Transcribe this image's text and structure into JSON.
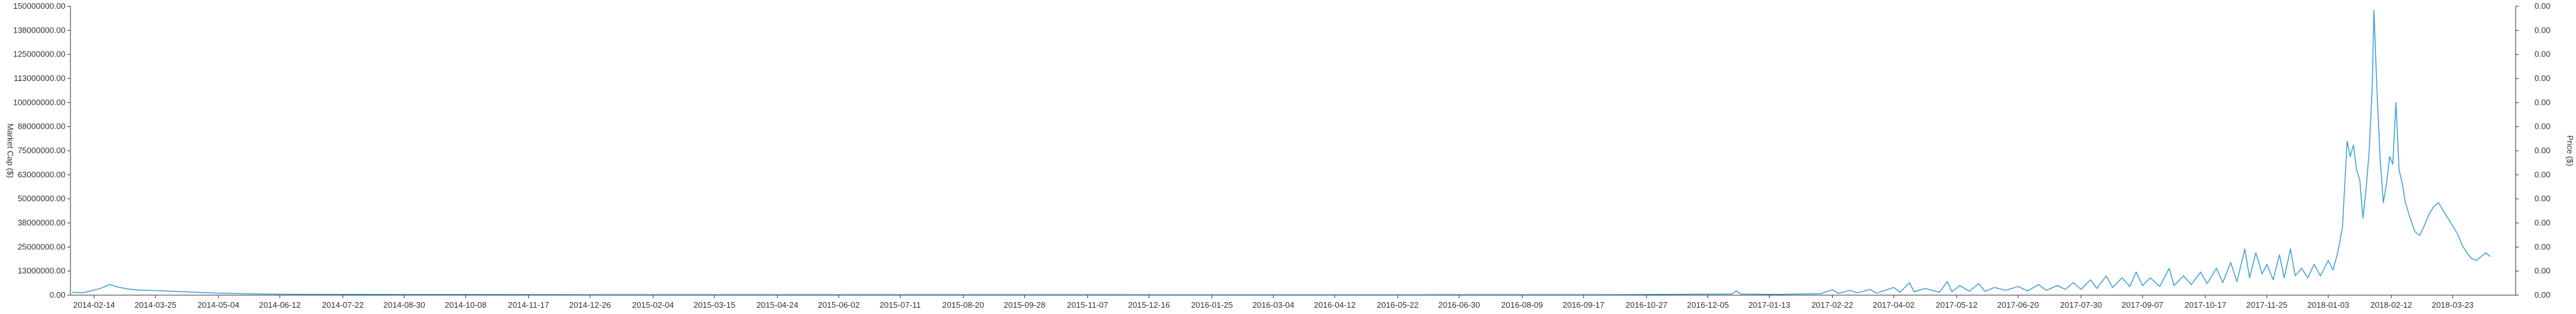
{
  "chart_data": {
    "type": "line",
    "title": "",
    "xlabel": "",
    "ylabel_left": "Market Cap ($)",
    "ylabel_right": "Price ($)",
    "grid": false,
    "legend": "none",
    "line_color": "#3b9fd6",
    "x_tick_labels": [
      "2014-02-14",
      "2014-03-25",
      "2014-05-04",
      "2014-06-12",
      "2014-07-22",
      "2014-08-30",
      "2014-10-08",
      "2014-11-17",
      "2014-12-26",
      "2015-02-04",
      "2015-03-15",
      "2015-04-24",
      "2015-06-02",
      "2015-07-11",
      "2015-08-20",
      "2015-09-28",
      "2015-11-07",
      "2015-12-16",
      "2016-01-25",
      "2016-03-04",
      "2016-04-12",
      "2016-05-22",
      "2016-06-30",
      "2016-08-09",
      "2016-09-17",
      "2016-10-27",
      "2016-12-05",
      "2017-01-13",
      "2017-02-22",
      "2017-04-02",
      "2017-05-12",
      "2017-06-20",
      "2017-07-30",
      "2017-09-07",
      "2017-10-17",
      "2017-11-25",
      "2018-01-03",
      "2018-02-12",
      "2018-03-23"
    ],
    "xlim": [
      "2014-01-30",
      "2018-05-02"
    ],
    "y_left_ticks": [
      "0.00",
      "13000000.00",
      "25000000.00",
      "38000000.00",
      "50000000.00",
      "63000000.00",
      "75000000.00",
      "88000000.00",
      "100000000.00",
      "113000000.00",
      "125000000.00",
      "138000000.00",
      "150000000.00"
    ],
    "y_right_ticks": [
      "0.00",
      "0.00",
      "0.00",
      "0.00",
      "0.00",
      "0.00",
      "0.00",
      "0.00",
      "0.00",
      "0.00",
      "0.00",
      "0.00",
      "0.00"
    ],
    "ylim": [
      0,
      150000000
    ],
    "series": [
      {
        "points": [
          [
            "2014-01-31",
            1500000
          ],
          [
            "2014-02-06",
            1200000
          ],
          [
            "2014-02-10",
            1800000
          ],
          [
            "2014-02-18",
            3500000
          ],
          [
            "2014-02-24",
            5500000
          ],
          [
            "2014-03-01",
            4200000
          ],
          [
            "2014-03-08",
            3200000
          ],
          [
            "2014-03-15",
            2600000
          ],
          [
            "2014-03-25",
            2400000
          ],
          [
            "2014-04-05",
            2000000
          ],
          [
            "2014-04-20",
            1500000
          ],
          [
            "2014-05-04",
            1000000
          ],
          [
            "2014-05-25",
            700000
          ],
          [
            "2014-06-12",
            500000
          ],
          [
            "2014-08-01",
            400000
          ],
          [
            "2014-10-01",
            350000
          ],
          [
            "2015-01-01",
            300000
          ],
          [
            "2015-06-01",
            280000
          ],
          [
            "2016-01-01",
            250000
          ],
          [
            "2016-06-01",
            250000
          ],
          [
            "2016-10-01",
            300000
          ],
          [
            "2016-12-20",
            600000
          ],
          [
            "2016-12-23",
            2200000
          ],
          [
            "2016-12-26",
            600000
          ],
          [
            "2017-01-20",
            400000
          ],
          [
            "2017-02-15",
            800000
          ],
          [
            "2017-02-22",
            2800000
          ],
          [
            "2017-02-26",
            900000
          ],
          [
            "2017-03-05",
            2500000
          ],
          [
            "2017-03-10",
            1200000
          ],
          [
            "2017-03-18",
            3000000
          ],
          [
            "2017-03-22",
            1000000
          ],
          [
            "2017-04-02",
            4000000
          ],
          [
            "2017-04-06",
            1500000
          ],
          [
            "2017-04-12",
            6500000
          ],
          [
            "2017-04-15",
            1800000
          ],
          [
            "2017-04-22",
            3500000
          ],
          [
            "2017-05-01",
            1500000
          ],
          [
            "2017-05-06",
            7000000
          ],
          [
            "2017-05-09",
            1800000
          ],
          [
            "2017-05-14",
            5000000
          ],
          [
            "2017-05-20",
            2000000
          ],
          [
            "2017-05-26",
            6000000
          ],
          [
            "2017-05-30",
            2000000
          ],
          [
            "2017-06-05",
            4000000
          ],
          [
            "2017-06-12",
            2500000
          ],
          [
            "2017-06-20",
            4500000
          ],
          [
            "2017-06-26",
            2200000
          ],
          [
            "2017-07-03",
            5500000
          ],
          [
            "2017-07-08",
            2500000
          ],
          [
            "2017-07-15",
            5000000
          ],
          [
            "2017-07-20",
            3000000
          ],
          [
            "2017-07-25",
            6500000
          ],
          [
            "2017-07-30",
            3000000
          ],
          [
            "2017-08-05",
            8000000
          ],
          [
            "2017-08-09",
            3500000
          ],
          [
            "2017-08-15",
            10000000
          ],
          [
            "2017-08-19",
            4000000
          ],
          [
            "2017-08-25",
            9000000
          ],
          [
            "2017-08-30",
            4500000
          ],
          [
            "2017-09-03",
            12000000
          ],
          [
            "2017-09-07",
            5000000
          ],
          [
            "2017-09-12",
            9000000
          ],
          [
            "2017-09-18",
            4500000
          ],
          [
            "2017-09-24",
            14000000
          ],
          [
            "2017-09-27",
            5000000
          ],
          [
            "2017-10-03",
            10000000
          ],
          [
            "2017-10-08",
            5500000
          ],
          [
            "2017-10-14",
            12000000
          ],
          [
            "2017-10-18",
            6000000
          ],
          [
            "2017-10-24",
            14000000
          ],
          [
            "2017-10-28",
            6500000
          ],
          [
            "2017-11-02",
            17000000
          ],
          [
            "2017-11-06",
            7000000
          ],
          [
            "2017-11-11",
            24000000
          ],
          [
            "2017-11-14",
            9000000
          ],
          [
            "2017-11-18",
            22000000
          ],
          [
            "2017-11-22",
            11000000
          ],
          [
            "2017-11-25",
            16000000
          ],
          [
            "2017-11-29",
            8000000
          ],
          [
            "2017-12-03",
            21000000
          ],
          [
            "2017-12-06",
            9000000
          ],
          [
            "2017-12-10",
            24000000
          ],
          [
            "2017-12-13",
            10000000
          ],
          [
            "2017-12-17",
            14000000
          ],
          [
            "2017-12-21",
            9000000
          ],
          [
            "2017-12-25",
            16000000
          ],
          [
            "2017-12-29",
            10000000
          ],
          [
            "2018-01-03",
            18000000
          ],
          [
            "2018-01-06",
            13000000
          ],
          [
            "2018-01-09",
            22000000
          ],
          [
            "2018-01-12",
            35000000
          ],
          [
            "2018-01-15",
            80000000
          ],
          [
            "2018-01-17",
            72000000
          ],
          [
            "2018-01-19",
            78000000
          ],
          [
            "2018-01-21",
            65000000
          ],
          [
            "2018-01-23",
            60000000
          ],
          [
            "2018-01-25",
            40000000
          ],
          [
            "2018-01-27",
            55000000
          ],
          [
            "2018-01-29",
            75000000
          ],
          [
            "2018-01-31",
            110000000
          ],
          [
            "2018-02-01",
            148000000
          ],
          [
            "2018-02-03",
            105000000
          ],
          [
            "2018-02-05",
            70000000
          ],
          [
            "2018-02-07",
            48000000
          ],
          [
            "2018-02-09",
            58000000
          ],
          [
            "2018-02-11",
            72000000
          ],
          [
            "2018-02-13",
            68000000
          ],
          [
            "2018-02-15",
            100000000
          ],
          [
            "2018-02-17",
            65000000
          ],
          [
            "2018-02-19",
            58000000
          ],
          [
            "2018-02-21",
            48000000
          ],
          [
            "2018-02-24",
            40000000
          ],
          [
            "2018-02-27",
            33000000
          ],
          [
            "2018-03-02",
            31000000
          ],
          [
            "2018-03-05",
            36000000
          ],
          [
            "2018-03-08",
            42000000
          ],
          [
            "2018-03-11",
            46000000
          ],
          [
            "2018-03-14",
            48000000
          ],
          [
            "2018-03-17",
            44000000
          ],
          [
            "2018-03-20",
            40000000
          ],
          [
            "2018-03-23",
            36000000
          ],
          [
            "2018-03-26",
            32000000
          ],
          [
            "2018-03-29",
            26000000
          ],
          [
            "2018-04-01",
            22000000
          ],
          [
            "2018-04-04",
            19000000
          ],
          [
            "2018-04-07",
            18000000
          ],
          [
            "2018-04-10",
            20000000
          ],
          [
            "2018-04-13",
            22000000
          ],
          [
            "2018-04-16",
            20000000
          ]
        ]
      }
    ]
  }
}
